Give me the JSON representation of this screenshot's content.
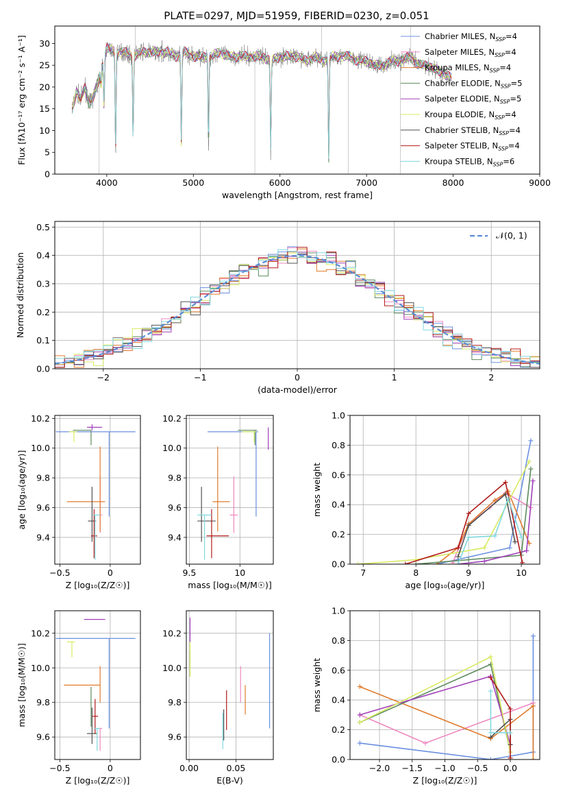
{
  "figure": {
    "title": "PLATE=0297, MJD=51959, FIBERID=0230, z=0.051"
  },
  "series_colors": [
    "#6a8fe0",
    "#ee88c0",
    "#e07a2a",
    "#5c8a5c",
    "#a040b8",
    "#d8ea60",
    "#505050",
    "#b01818",
    "#80d8e0"
  ],
  "legend_labels": [
    "Chabrier MILES, N",
    "Salpeter MILES, N",
    "Kroupa MILES, N",
    "Chabrier ELODIE, N",
    "Salpeter ELODIE, N",
    "Kroupa ELODIE, N",
    "Chabrier STELIB, N",
    "Salpeter STELIB, N",
    "Kroupa STELIB, N"
  ],
  "legend_sub": "SSP",
  "legend_nssp": [
    "=4",
    "=4",
    "=4",
    "=5",
    "=5",
    "=4",
    "=4",
    "=4",
    "=6"
  ],
  "normal_label": "𝒩(0, 1)",
  "chart_data": [
    {
      "id": "spectrum",
      "type": "line",
      "xlabel": "wavelength [Angstrom, rest frame]",
      "ylabel": "Flux [fλ10⁻¹⁷ erg cm⁻² s⁻¹ A⁻¹]",
      "xlim": [
        3400,
        9000
      ],
      "ylim": [
        0,
        34
      ],
      "xticks": [
        4000,
        5000,
        6000,
        7000,
        8000,
        9000
      ],
      "yticks": [
        0,
        5,
        10,
        15,
        20,
        25,
        30
      ],
      "observed_anchors": [
        [
          3600,
          15
        ],
        [
          3650,
          19
        ],
        [
          3700,
          17
        ],
        [
          3750,
          20
        ],
        [
          3800,
          16
        ],
        [
          3850,
          18
        ],
        [
          3900,
          21
        ],
        [
          3950,
          25
        ],
        [
          4000,
          29
        ],
        [
          4100,
          28
        ],
        [
          4200,
          28
        ],
        [
          4300,
          27
        ],
        [
          4400,
          28
        ],
        [
          4500,
          28
        ],
        [
          4600,
          28
        ],
        [
          4700,
          28
        ],
        [
          4800,
          27
        ],
        [
          4900,
          28
        ],
        [
          5000,
          27
        ],
        [
          5100,
          27
        ],
        [
          5200,
          27
        ],
        [
          5300,
          28
        ],
        [
          5400,
          27
        ],
        [
          5500,
          27
        ],
        [
          5600,
          27
        ],
        [
          5700,
          27
        ],
        [
          5800,
          27
        ],
        [
          5900,
          26
        ],
        [
          6000,
          27
        ],
        [
          6100,
          27
        ],
        [
          6200,
          27
        ],
        [
          6300,
          26
        ],
        [
          6400,
          27
        ],
        [
          6500,
          26
        ],
        [
          6600,
          27
        ],
        [
          6700,
          27
        ],
        [
          6800,
          27
        ],
        [
          6900,
          26
        ],
        [
          7000,
          26
        ],
        [
          7100,
          25
        ],
        [
          7200,
          25
        ],
        [
          7300,
          26
        ],
        [
          7400,
          26
        ],
        [
          7500,
          27
        ],
        [
          7600,
          25
        ],
        [
          7700,
          25
        ],
        [
          7800,
          24
        ],
        [
          7900,
          23
        ],
        [
          7980,
          22
        ]
      ],
      "absorption_features": [
        [
          3933,
          20
        ],
        [
          3968,
          15
        ],
        [
          4102,
          5
        ],
        [
          4304,
          8
        ],
        [
          4861,
          6
        ],
        [
          5175,
          6
        ],
        [
          5893,
          5
        ],
        [
          6563,
          2
        ]
      ],
      "sky_spikes": [
        [
          3912,
          0
        ],
        [
          5710,
          0
        ],
        [
          6790,
          0
        ],
        [
          7390,
          0
        ],
        [
          4330,
          34
        ],
        [
          6480,
          34
        ],
        [
          7510,
          34
        ]
      ]
    },
    {
      "id": "residuals",
      "type": "step",
      "xlabel": "(data-model)/error",
      "ylabel": "Normed distribution",
      "xlim": [
        -2.5,
        2.5
      ],
      "ylim": [
        0,
        0.52
      ],
      "xticks": [
        -2,
        -1,
        0,
        1,
        2
      ],
      "yticks": [
        0,
        0.1,
        0.2,
        0.3,
        0.4,
        0.5
      ],
      "bin_width": 0.1,
      "reference": "normal N(0,1)"
    },
    {
      "id": "z_age",
      "type": "scatter",
      "xlabel": "Z [log₁₀(Z/Z☉)]",
      "ylabel": "age  [log₁₀(age/yr)]",
      "xlim": [
        -0.55,
        0.3
      ],
      "ylim": [
        9.22,
        10.22
      ],
      "xticks": [
        -0.5,
        0.0
      ],
      "yticks": [
        9.4,
        9.6,
        9.8,
        10.0,
        10.2
      ],
      "points": [
        {
          "x": -0.01,
          "xerr": [
            0.53,
            0.26
          ],
          "y": 10.11,
          "yerr": [
            0.57,
            0.0
          ]
        },
        {
          "x": -0.1,
          "xerr": [
            0.02,
            0.02
          ],
          "y": 9.55,
          "yerr": [
            0.12,
            0.26
          ]
        },
        {
          "x": -0.1,
          "xerr": [
            0.33,
            0.05
          ],
          "y": 9.64,
          "yerr": [
            0.2,
            0.37
          ]
        },
        {
          "x": -0.19,
          "xerr": [
            0.18,
            0.0
          ],
          "y": 10.12,
          "yerr": [
            0.1,
            0.0
          ]
        },
        {
          "x": -0.18,
          "xerr": [
            0.05,
            0.1
          ],
          "y": 10.14,
          "yerr": [
            0.02,
            0.02
          ]
        },
        {
          "x": -0.36,
          "xerr": [
            0.05,
            0.03
          ],
          "y": 10.11,
          "yerr": [
            0.07,
            0.0
          ]
        },
        {
          "x": -0.18,
          "xerr": [
            0.04,
            0.04
          ],
          "y": 9.51,
          "yerr": [
            0.14,
            0.23
          ]
        },
        {
          "x": -0.16,
          "xerr": [
            0.03,
            0.03
          ],
          "y": 9.41,
          "yerr": [
            0.15,
            0.18
          ]
        },
        {
          "x": -0.15,
          "xerr": [
            0.02,
            0.05
          ],
          "y": 9.55,
          "yerr": [
            0.3,
            0.0
          ]
        }
      ]
    },
    {
      "id": "mass_age",
      "type": "scatter",
      "xlabel": "mass [log₁₀(M/M☉)]",
      "ylabel": "",
      "xlim": [
        9.47,
        10.33
      ],
      "ylim": [
        9.22,
        10.22
      ],
      "xticks": [
        9.5,
        10.0
      ],
      "yticks": [
        9.4,
        9.6,
        9.8,
        10.0,
        10.2
      ],
      "points": [
        {
          "x": 10.16,
          "xerr": [
            0.48,
            0.02
          ],
          "y": 10.11,
          "yerr": [
            0.57,
            0.0
          ]
        },
        {
          "x": 9.94,
          "xerr": [
            0.04,
            0.04
          ],
          "y": 9.55,
          "yerr": [
            0.12,
            0.26
          ]
        },
        {
          "x": 9.78,
          "xerr": [
            0.05,
            0.12
          ],
          "y": 9.64,
          "yerr": [
            0.2,
            0.37
          ]
        },
        {
          "x": 10.15,
          "xerr": [
            0.17,
            0.02
          ],
          "y": 10.12,
          "yerr": [
            0.1,
            0.0
          ]
        },
        {
          "x": 10.28,
          "xerr": [
            0.0,
            0.0
          ],
          "y": 10.14,
          "yerr": [
            0.15,
            0.0
          ]
        },
        {
          "x": 10.14,
          "xerr": [
            0.12,
            0.02
          ],
          "y": 10.11,
          "yerr": [
            0.07,
            0.0
          ]
        },
        {
          "x": 9.62,
          "xerr": [
            0.04,
            0.14
          ],
          "y": 9.51,
          "yerr": [
            0.14,
            0.23
          ]
        },
        {
          "x": 9.72,
          "xerr": [
            0.05,
            0.17
          ],
          "y": 9.41,
          "yerr": [
            0.15,
            0.18
          ]
        },
        {
          "x": 9.65,
          "xerr": [
            0.07,
            0.07
          ],
          "y": 9.55,
          "yerr": [
            0.3,
            0.0
          ]
        }
      ]
    },
    {
      "id": "weight_age",
      "type": "line",
      "xlabel": "age  [log₁₀(age/yr)]",
      "ylabel": "mass weight",
      "xlim": [
        6.75,
        10.35
      ],
      "ylim": [
        0,
        1.0
      ],
      "xticks": [
        7,
        8,
        9,
        10
      ],
      "yticks": [
        0,
        0.2,
        0.4,
        0.6,
        0.8,
        1.0
      ],
      "series": [
        {
          "x": [
            8.4,
            9.78,
            10.18
          ],
          "y": [
            0.0,
            0.11,
            0.83
          ]
        },
        {
          "x": [
            8.7,
            9.0,
            9.4,
            9.7,
            10.18
          ],
          "y": [
            0.01,
            0.27,
            0.38,
            0.48,
            0.38
          ]
        },
        {
          "x": [
            8.4,
            8.8,
            9.0,
            9.5,
            9.75,
            10.15
          ],
          "y": [
            0.0,
            0.11,
            0.27,
            0.43,
            0.49,
            0.14
          ]
        },
        {
          "x": [
            8.0,
            9.0,
            10.0,
            10.18
          ],
          "y": [
            0.0,
            0.03,
            0.06,
            0.64
          ]
        },
        {
          "x": [
            8.8,
            9.3,
            10.1,
            10.22
          ],
          "y": [
            0.0,
            0.02,
            0.09,
            0.56
          ]
        },
        {
          "x": [
            6.9,
            8.0,
            9.3,
            10.15
          ],
          "y": [
            0.0,
            0.03,
            0.11,
            0.69
          ]
        },
        {
          "x": [
            8.8,
            9.0,
            9.7,
            9.88
          ],
          "y": [
            0.05,
            0.26,
            0.47,
            0.15
          ]
        },
        {
          "x": [
            7.8,
            8.8,
            9.0,
            9.7,
            10.02
          ],
          "y": [
            0.0,
            0.11,
            0.34,
            0.55,
            0.01
          ]
        },
        {
          "x": [
            8.8,
            9.0,
            9.5,
            9.75,
            10.0
          ],
          "y": [
            0.0,
            0.18,
            0.19,
            0.44,
            0.18
          ]
        }
      ]
    },
    {
      "id": "z_mass",
      "type": "scatter",
      "xlabel": "Z [log₁₀(Z/Z☉)]",
      "ylabel": "mass [log₁₀(M/M☉)]",
      "xlim": [
        -0.55,
        0.3
      ],
      "ylim": [
        9.47,
        10.33
      ],
      "xticks": [
        -0.5,
        0.0
      ],
      "yticks": [
        9.6,
        9.8,
        10.0,
        10.2
      ],
      "points": [
        {
          "x": -0.01,
          "xerr": [
            0.53,
            0.26
          ],
          "y": 10.17,
          "yerr": [
            0.52,
            0.0
          ]
        },
        {
          "x": -0.1,
          "xerr": [
            0.02,
            0.02
          ],
          "y": 9.65,
          "yerr": [
            0.13,
            0.0
          ]
        },
        {
          "x": -0.1,
          "xerr": [
            0.36,
            0.0
          ],
          "y": 9.9,
          "yerr": [
            0.1,
            0.11
          ]
        },
        {
          "x": -0.19,
          "xerr": [
            0.0,
            0.0
          ],
          "y": 9.79,
          "yerr": [
            0.13,
            0.1
          ]
        },
        {
          "x": -0.15,
          "xerr": [
            0.11,
            0.1
          ],
          "y": 10.28,
          "yerr": [
            0.0,
            0.0
          ]
        },
        {
          "x": -0.38,
          "xerr": [
            0.05,
            0.03
          ],
          "y": 10.15,
          "yerr": [
            0.09,
            0.0
          ]
        },
        {
          "x": -0.18,
          "xerr": [
            0.05,
            0.05
          ],
          "y": 9.62,
          "yerr": [
            0.06,
            0.15
          ]
        },
        {
          "x": -0.15,
          "xerr": [
            0.03,
            0.03
          ],
          "y": 9.72,
          "yerr": [
            0.1,
            0.1
          ]
        },
        {
          "x": -0.13,
          "xerr": [
            0.03,
            0.03
          ],
          "y": 9.65,
          "yerr": [
            0.13,
            0.0
          ]
        }
      ]
    },
    {
      "id": "ebv_mass",
      "type": "scatter",
      "xlabel": "E(B-V)",
      "ylabel": "",
      "xlim": [
        -0.003,
        0.09
      ],
      "ylim": [
        9.47,
        10.33
      ],
      "xticks": [
        0.0,
        0.05
      ],
      "yticks": [
        9.6,
        9.8,
        10.0,
        10.2
      ],
      "points": [
        {
          "x": 0.086,
          "y": 10.0,
          "yerr": [
            0.35,
            0.2
          ]
        },
        {
          "x": 0.055,
          "y": 9.9,
          "yerr": [
            0.1,
            0.11
          ]
        },
        {
          "x": 0.06,
          "y": 9.8,
          "yerr": [
            0.07,
            0.1
          ]
        },
        {
          "x": 0.001,
          "y": 10.1,
          "yerr": [
            0.15,
            0.0
          ]
        },
        {
          "x": 0.001,
          "y": 10.2,
          "yerr": [
            0.05,
            0.09
          ]
        },
        {
          "x": 0.001,
          "y": 10.05,
          "yerr": [
            0.1,
            0.1
          ]
        },
        {
          "x": 0.037,
          "y": 9.68,
          "yerr": [
            0.1,
            0.08
          ]
        },
        {
          "x": 0.04,
          "y": 9.72,
          "yerr": [
            0.08,
            0.15
          ]
        },
        {
          "x": 0.036,
          "y": 9.62,
          "yerr": [
            0.09,
            0.12
          ]
        }
      ]
    },
    {
      "id": "weight_z",
      "type": "line",
      "xlabel": "Z [log₁₀(Z/Z☉)]",
      "ylabel": "mass weight",
      "xlim": [
        -2.45,
        0.45
      ],
      "ylim": [
        0,
        1.0
      ],
      "xticks": [
        -2.0,
        -1.5,
        -1.0,
        -0.5,
        0.0
      ],
      "yticks": [
        0,
        0.2,
        0.4,
        0.6,
        0.8,
        1.0
      ],
      "series": [
        {
          "x": [
            -2.3,
            -0.3,
            0.35,
            0.35
          ],
          "y": [
            0.11,
            0.0,
            0.05,
            0.83
          ]
        },
        {
          "x": [
            -2.3,
            -1.3,
            0.35
          ],
          "y": [
            0.3,
            0.11,
            0.38
          ]
        },
        {
          "x": [
            -2.3,
            -0.3,
            0.35,
            0.35
          ],
          "y": [
            0.49,
            0.14,
            0.36,
            0.0
          ]
        },
        {
          "x": [
            -2.3,
            -0.3,
            0.0
          ],
          "y": [
            0.25,
            0.64,
            0.05
          ]
        },
        {
          "x": [
            -2.3,
            -0.3,
            0.0
          ],
          "y": [
            0.3,
            0.56,
            0.1
          ]
        },
        {
          "x": [
            -2.3,
            -0.3,
            0.0
          ],
          "y": [
            0.25,
            0.69,
            0.05
          ]
        },
        {
          "x": [
            -0.3,
            0.0,
            0.0
          ],
          "y": [
            0.15,
            0.27,
            0.1
          ]
        },
        {
          "x": [
            -0.3,
            0.0,
            0.0
          ],
          "y": [
            0.55,
            0.34,
            0.01
          ]
        },
        {
          "x": [
            -0.3,
            -0.3,
            0.0
          ],
          "y": [
            0.46,
            0.18,
            0.18
          ]
        }
      ]
    }
  ]
}
